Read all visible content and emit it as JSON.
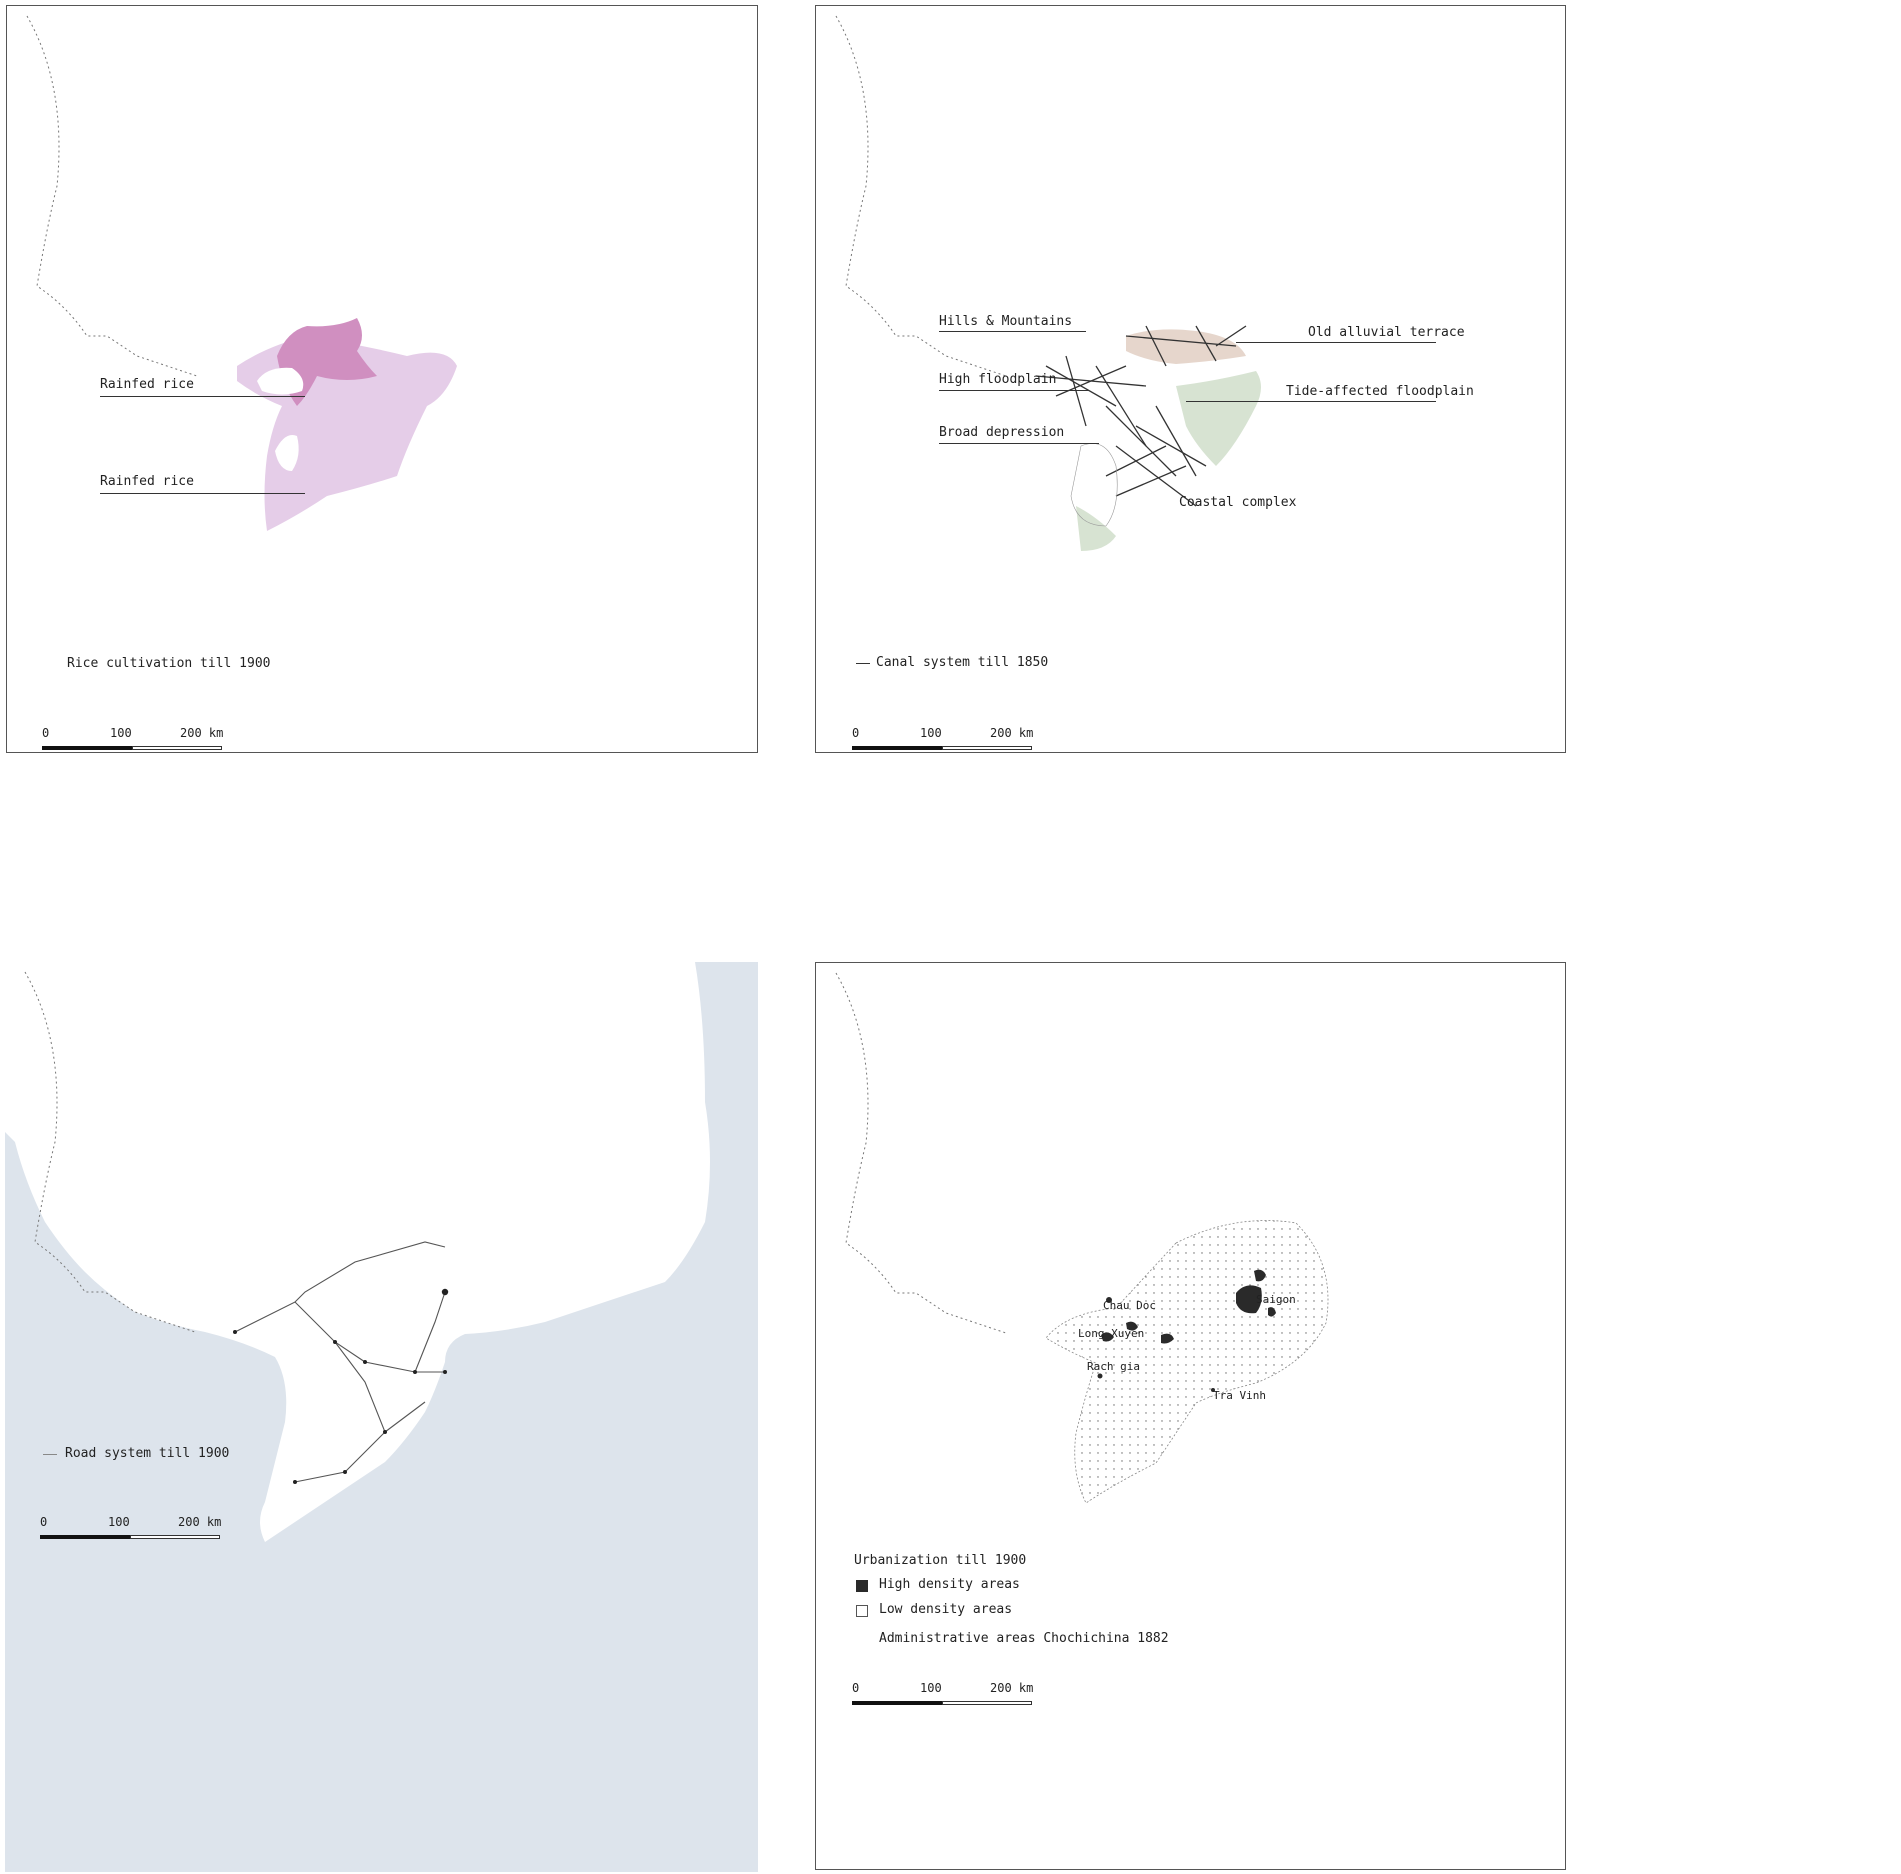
{
  "colors": {
    "water": "#9db9c8",
    "river": "#7fa6b8",
    "sea": "#dde4ec",
    "rice_dark": "#d08fc0",
    "rice_light": "#e5cde8",
    "alluvial": "#e6d6cc",
    "tide": "#d7e3d2",
    "urban_dark": "#2a2a2a"
  },
  "scale": {
    "t0": "0",
    "t1": "100",
    "t2": "200 km"
  },
  "panel1": {
    "legend": "Rice cultivation till 1900",
    "labels": [
      "Rainfed rice",
      "Rainfed rice"
    ]
  },
  "panel2": {
    "legend": "Canal system till 1850",
    "labels": {
      "hills": "Hills & Mountains",
      "high_flood": "High floodplain",
      "broad": "Broad depression",
      "coastal": "Coastal complex",
      "alluvial": "Old alluvial terrace",
      "tide": "Tide-affected floodplain"
    }
  },
  "panel3": {
    "legend": "Road system till 1900"
  },
  "panel4": {
    "title": "Urbanization till 1900",
    "high": "High density areas",
    "low": "Low density areas",
    "admin": "Administrative areas Chochichina 1882",
    "cities": {
      "chau_doc": "Chau Doc",
      "long_xuyen": "Long Xuyen",
      "rach_gia": "Rach gia",
      "saigon": "Saigon",
      "tra_vinh": "Tra Vinh"
    }
  }
}
